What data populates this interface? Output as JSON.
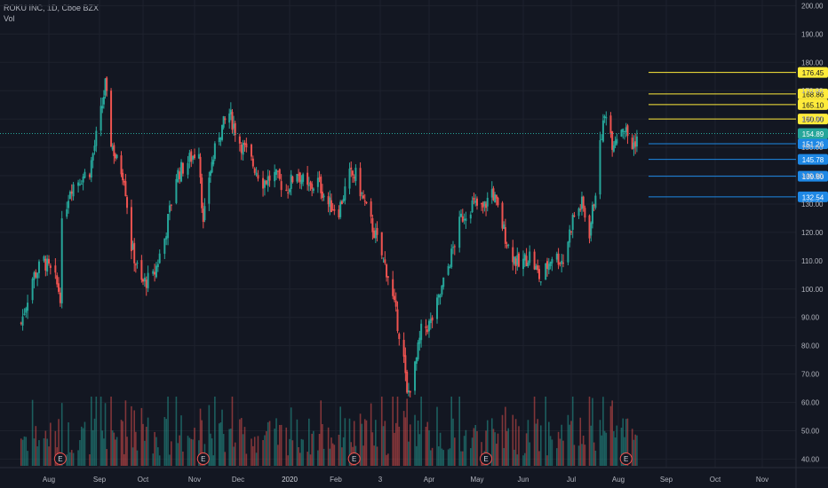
{
  "header": {
    "title": "ROKU INC, 1D, Cboe BZX",
    "volume_label": "Vol"
  },
  "colors": {
    "background": "#131722",
    "up": "#26a69a",
    "down": "#ef5350",
    "grid": "#1e222d",
    "axis_text": "#b2b5be",
    "resistance": "#ffeb3b",
    "support": "#1e88e5",
    "current": "#26a69a"
  },
  "chart_data": {
    "type": "candlestick",
    "title": "ROKU INC, 1D, Cboe BZX",
    "y_axis": {
      "ticks": [
        40,
        50,
        60,
        70,
        80,
        90,
        100,
        110,
        120,
        130,
        140,
        150,
        160,
        170,
        180,
        190,
        200
      ],
      "tick_labels": [
        "40.00",
        "50.00",
        "60.00",
        "70.00",
        "80.00",
        "90.00",
        "100.00",
        "110.00",
        "120.00",
        "130.00",
        "140.00",
        "150.00",
        "160.00",
        "170.00",
        "180.00",
        "190.00",
        "200.00"
      ],
      "range": [
        37,
        202
      ]
    },
    "x_axis": {
      "tick_labels": [
        "Aug",
        "Sep",
        "Oct",
        "Nov",
        "Dec",
        "2020",
        "Feb",
        "3",
        "Apr",
        "May",
        "Jun",
        "Jul",
        "Aug",
        "Sep",
        "Oct",
        "Nov"
      ]
    },
    "current_price": {
      "value": 154.89,
      "label": "154.89"
    },
    "resistance_levels": [
      {
        "value": 176.45,
        "label": "176.45"
      },
      {
        "value": 168.86,
        "label": "168.86"
      },
      {
        "value": 165.1,
        "label": "165.10"
      },
      {
        "value": 160.0,
        "label": "160.00"
      }
    ],
    "support_levels": [
      {
        "value": 151.26,
        "label": "151.26"
      },
      {
        "value": 145.78,
        "label": "145.78"
      },
      {
        "value": 139.8,
        "label": "139.80"
      },
      {
        "value": 132.54,
        "label": "132.54"
      }
    ],
    "earnings_marker": "E",
    "price_path": [
      [
        "2019-07-15",
        88
      ],
      [
        "2019-07-22",
        104
      ],
      [
        "2019-07-29",
        110
      ],
      [
        "2019-08-05",
        103
      ],
      [
        "2019-08-08",
        98
      ],
      [
        "2019-08-09",
        122
      ],
      [
        "2019-08-14",
        136
      ],
      [
        "2019-08-26",
        142
      ],
      [
        "2019-09-03",
        165
      ],
      [
        "2019-09-05",
        172
      ],
      [
        "2019-09-09",
        152
      ],
      [
        "2019-09-13",
        145
      ],
      [
        "2019-09-18",
        140
      ],
      [
        "2019-09-23",
        115
      ],
      [
        "2019-09-30",
        102
      ],
      [
        "2019-10-07",
        104
      ],
      [
        "2019-10-14",
        118
      ],
      [
        "2019-10-21",
        140
      ],
      [
        "2019-10-28",
        145
      ],
      [
        "2019-11-04",
        150
      ],
      [
        "2019-11-07",
        122
      ],
      [
        "2019-11-11",
        140
      ],
      [
        "2019-11-18",
        155
      ],
      [
        "2019-11-25",
        162
      ],
      [
        "2019-12-02",
        152
      ],
      [
        "2019-12-09",
        145
      ],
      [
        "2019-12-16",
        138
      ],
      [
        "2019-12-23",
        140
      ],
      [
        "2019-12-30",
        135
      ],
      [
        "2020-01-06",
        142
      ],
      [
        "2020-01-13",
        135
      ],
      [
        "2020-01-20",
        138
      ],
      [
        "2020-01-27",
        130
      ],
      [
        "2020-02-03",
        128
      ],
      [
        "2020-02-10",
        140
      ],
      [
        "2020-02-14",
        140
      ],
      [
        "2020-02-21",
        128
      ],
      [
        "2020-02-28",
        117
      ],
      [
        "2020-03-06",
        105
      ],
      [
        "2020-03-12",
        88
      ],
      [
        "2020-03-16",
        75
      ],
      [
        "2020-03-18",
        62
      ],
      [
        "2020-03-23",
        72
      ],
      [
        "2020-03-27",
        85
      ],
      [
        "2020-04-02",
        88
      ],
      [
        "2020-04-07",
        96
      ],
      [
        "2020-04-14",
        110
      ],
      [
        "2020-04-21",
        125
      ],
      [
        "2020-04-28",
        130
      ],
      [
        "2020-05-05",
        128
      ],
      [
        "2020-05-11",
        135
      ],
      [
        "2020-05-15",
        128
      ],
      [
        "2020-05-22",
        115
      ],
      [
        "2020-05-29",
        108
      ],
      [
        "2020-06-05",
        112
      ],
      [
        "2020-06-12",
        103
      ],
      [
        "2020-06-19",
        112
      ],
      [
        "2020-06-26",
        110
      ],
      [
        "2020-07-02",
        125
      ],
      [
        "2020-07-08",
        130
      ],
      [
        "2020-07-13",
        120
      ],
      [
        "2020-07-17",
        135
      ],
      [
        "2020-07-21",
        155
      ],
      [
        "2020-07-24",
        163
      ],
      [
        "2020-07-28",
        152
      ],
      [
        "2020-08-04",
        158
      ],
      [
        "2020-08-10",
        150
      ],
      [
        "2020-08-14",
        155
      ]
    ]
  }
}
